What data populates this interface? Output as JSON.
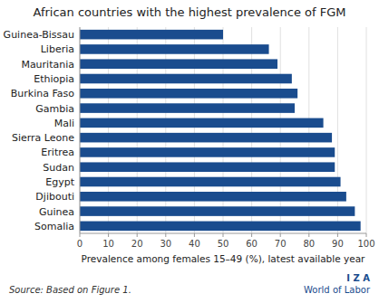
{
  "chart_data": {
    "type": "bar",
    "orientation": "horizontal",
    "title": "African countries with the highest prevalence of FGM",
    "xlabel": "Prevalence among females 15–49 (%), latest available year",
    "source": "Source: Based on Figure 1.",
    "annotations": [
      "I Z A",
      "World of Labor"
    ],
    "categories": [
      "Somalia",
      "Guinea",
      "Djibouti",
      "Egypt",
      "Sudan",
      "Eritrea",
      "Sierra Leone",
      "Mali",
      "Gambia",
      "Burkina Faso",
      "Ethiopia",
      "Mauritania",
      "Liberia",
      "Guinea-Bissau"
    ],
    "values": [
      98,
      96,
      93,
      91,
      89,
      89,
      88,
      85,
      75,
      76,
      74,
      69,
      66,
      50
    ],
    "color": "#1a4c8e",
    "xlim": [
      0,
      100
    ],
    "xticks": [
      0,
      10,
      20,
      30,
      40,
      50,
      60,
      70,
      80,
      90,
      100
    ],
    "grid": true
  }
}
